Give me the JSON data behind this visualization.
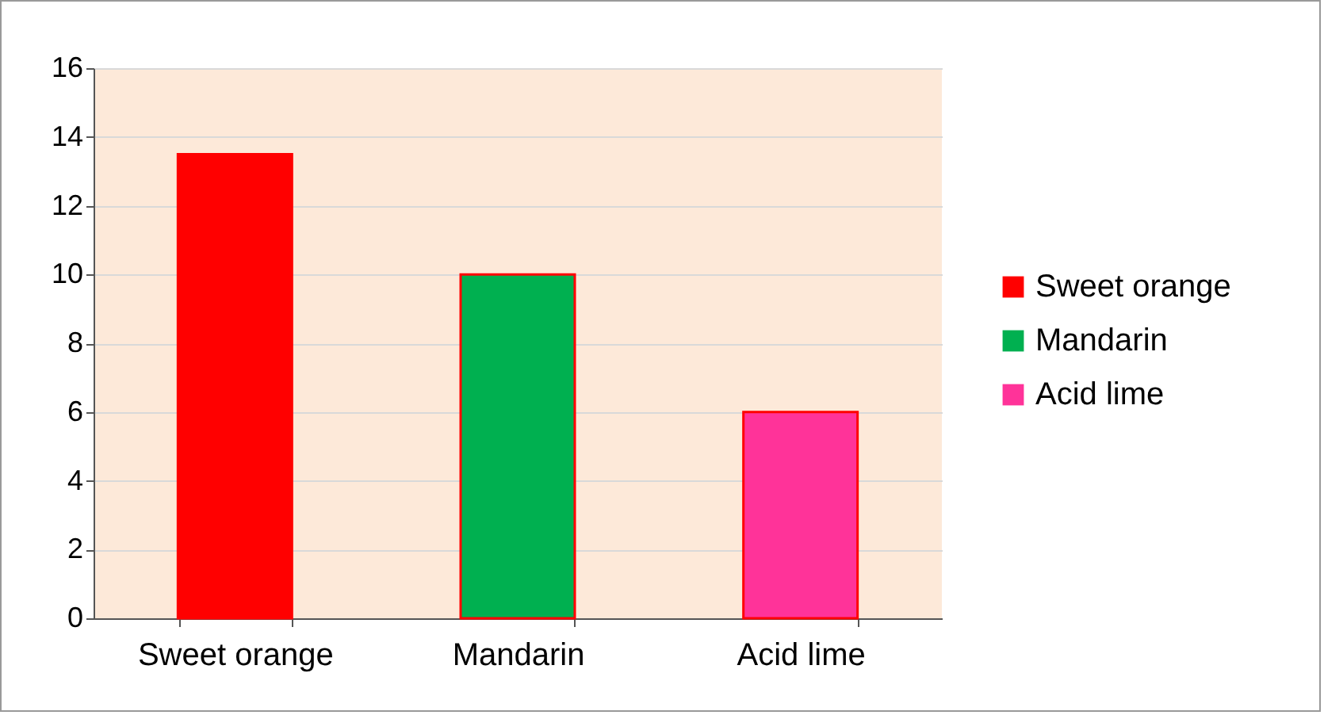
{
  "chart_data": {
    "type": "bar",
    "stacked": true,
    "categories": [
      "Sweet orange",
      "Mandarin",
      "Acid lime"
    ],
    "series": [
      {
        "name": "Sweet orange",
        "color": "#ff0000",
        "values": [
          13.5,
          null,
          null
        ]
      },
      {
        "name": "Mandarin",
        "color": "#00b050",
        "values": [
          null,
          10,
          null
        ]
      },
      {
        "name": "Acid lime",
        "color": "#ff3399",
        "values": [
          null,
          null,
          6
        ]
      }
    ],
    "ylim": [
      0,
      16
    ],
    "yticks": [
      0,
      2,
      4,
      6,
      8,
      10,
      12,
      14,
      16
    ],
    "grid": "y",
    "legend": "right"
  }
}
